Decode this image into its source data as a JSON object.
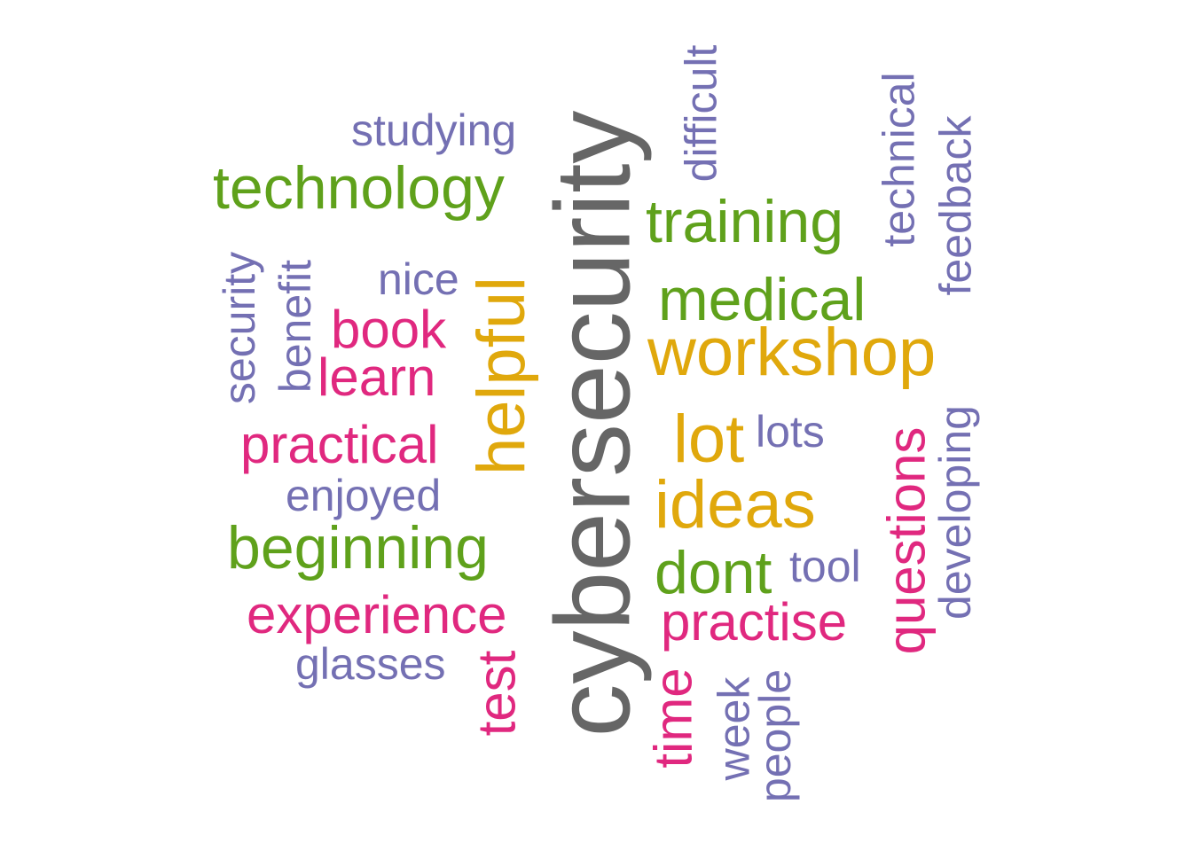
{
  "words": {
    "cybersecurity": "cybersecurity",
    "helpful": "helpful",
    "studying": "studying",
    "technology": "technology",
    "nice": "nice",
    "book": "book",
    "learn": "learn",
    "practical": "practical",
    "enjoyed": "enjoyed",
    "beginning": "beginning",
    "experience": "experience",
    "glasses": "glasses",
    "security": "security",
    "benefit": "benefit",
    "test": "test",
    "difficult": "difficult",
    "training": "training",
    "medical": "medical",
    "workshop": "workshop",
    "lot": "lot",
    "lots": "lots",
    "ideas": "ideas",
    "dont": "dont",
    "tool": "tool",
    "practise": "practise",
    "time": "time",
    "week": "week",
    "people": "people",
    "technical": "technical",
    "feedback": "feedback",
    "questions": "questions",
    "developing": "developing"
  },
  "colors": {
    "gray": "#666666",
    "green": "#5fa11b",
    "gold": "#e0a80c",
    "pink": "#e0287f",
    "purple": "#7470b3"
  }
}
